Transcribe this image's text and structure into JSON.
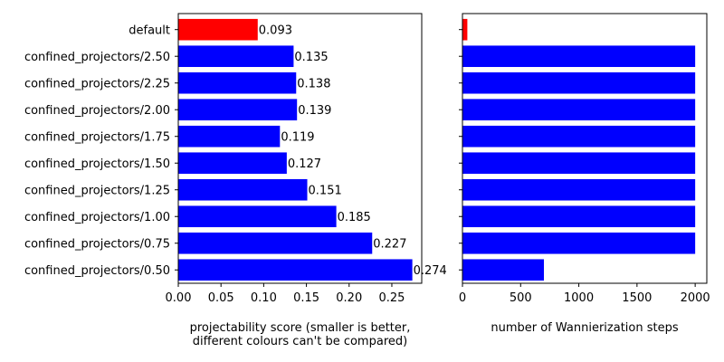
{
  "chart_data": [
    {
      "type": "bar",
      "orientation": "horizontal",
      "categories": [
        "default",
        "confined_projectors/2.50",
        "confined_projectors/2.25",
        "confined_projectors/2.00",
        "confined_projectors/1.75",
        "confined_projectors/1.50",
        "confined_projectors/1.25",
        "confined_projectors/1.00",
        "confined_projectors/0.75",
        "confined_projectors/0.50"
      ],
      "values": [
        0.093,
        0.135,
        0.138,
        0.139,
        0.119,
        0.127,
        0.151,
        0.185,
        0.227,
        0.274
      ],
      "data_labels": [
        "0.093",
        "0.135",
        "0.138",
        "0.139",
        "0.119",
        "0.127",
        "0.151",
        "0.185",
        "0.227",
        "0.274"
      ],
      "bar_colors": [
        "#ff0000",
        "#0000ff",
        "#0000ff",
        "#0000ff",
        "#0000ff",
        "#0000ff",
        "#0000ff",
        "#0000ff",
        "#0000ff",
        "#0000ff"
      ],
      "xlabel_lines": [
        "projectability score (smaller is better,",
        "different colours can't be compared)"
      ],
      "xlim": [
        0,
        0.285
      ],
      "xticks": [
        0,
        0.05,
        0.1,
        0.15,
        0.2,
        0.25
      ],
      "xtick_labels": [
        "0.00",
        "0.05",
        "0.10",
        "0.15",
        "0.20",
        "0.25"
      ],
      "grid": false
    },
    {
      "type": "bar",
      "orientation": "horizontal",
      "categories": [
        "default",
        "confined_projectors/2.50",
        "confined_projectors/2.25",
        "confined_projectors/2.00",
        "confined_projectors/1.75",
        "confined_projectors/1.50",
        "confined_projectors/1.25",
        "confined_projectors/1.00",
        "confined_projectors/0.75",
        "confined_projectors/0.50"
      ],
      "values": [
        42,
        2000,
        2000,
        2000,
        2000,
        2000,
        2000,
        2000,
        2000,
        700
      ],
      "bar_colors": [
        "#ff0000",
        "#0000ff",
        "#0000ff",
        "#0000ff",
        "#0000ff",
        "#0000ff",
        "#0000ff",
        "#0000ff",
        "#0000ff",
        "#0000ff"
      ],
      "xlabel": "number of Wannierization steps",
      "xlim": [
        0,
        2100
      ],
      "xticks": [
        0,
        500,
        1000,
        1500,
        2000
      ],
      "xtick_labels": [
        "0",
        "500",
        "1000",
        "1500",
        "2000"
      ],
      "grid": false
    }
  ]
}
